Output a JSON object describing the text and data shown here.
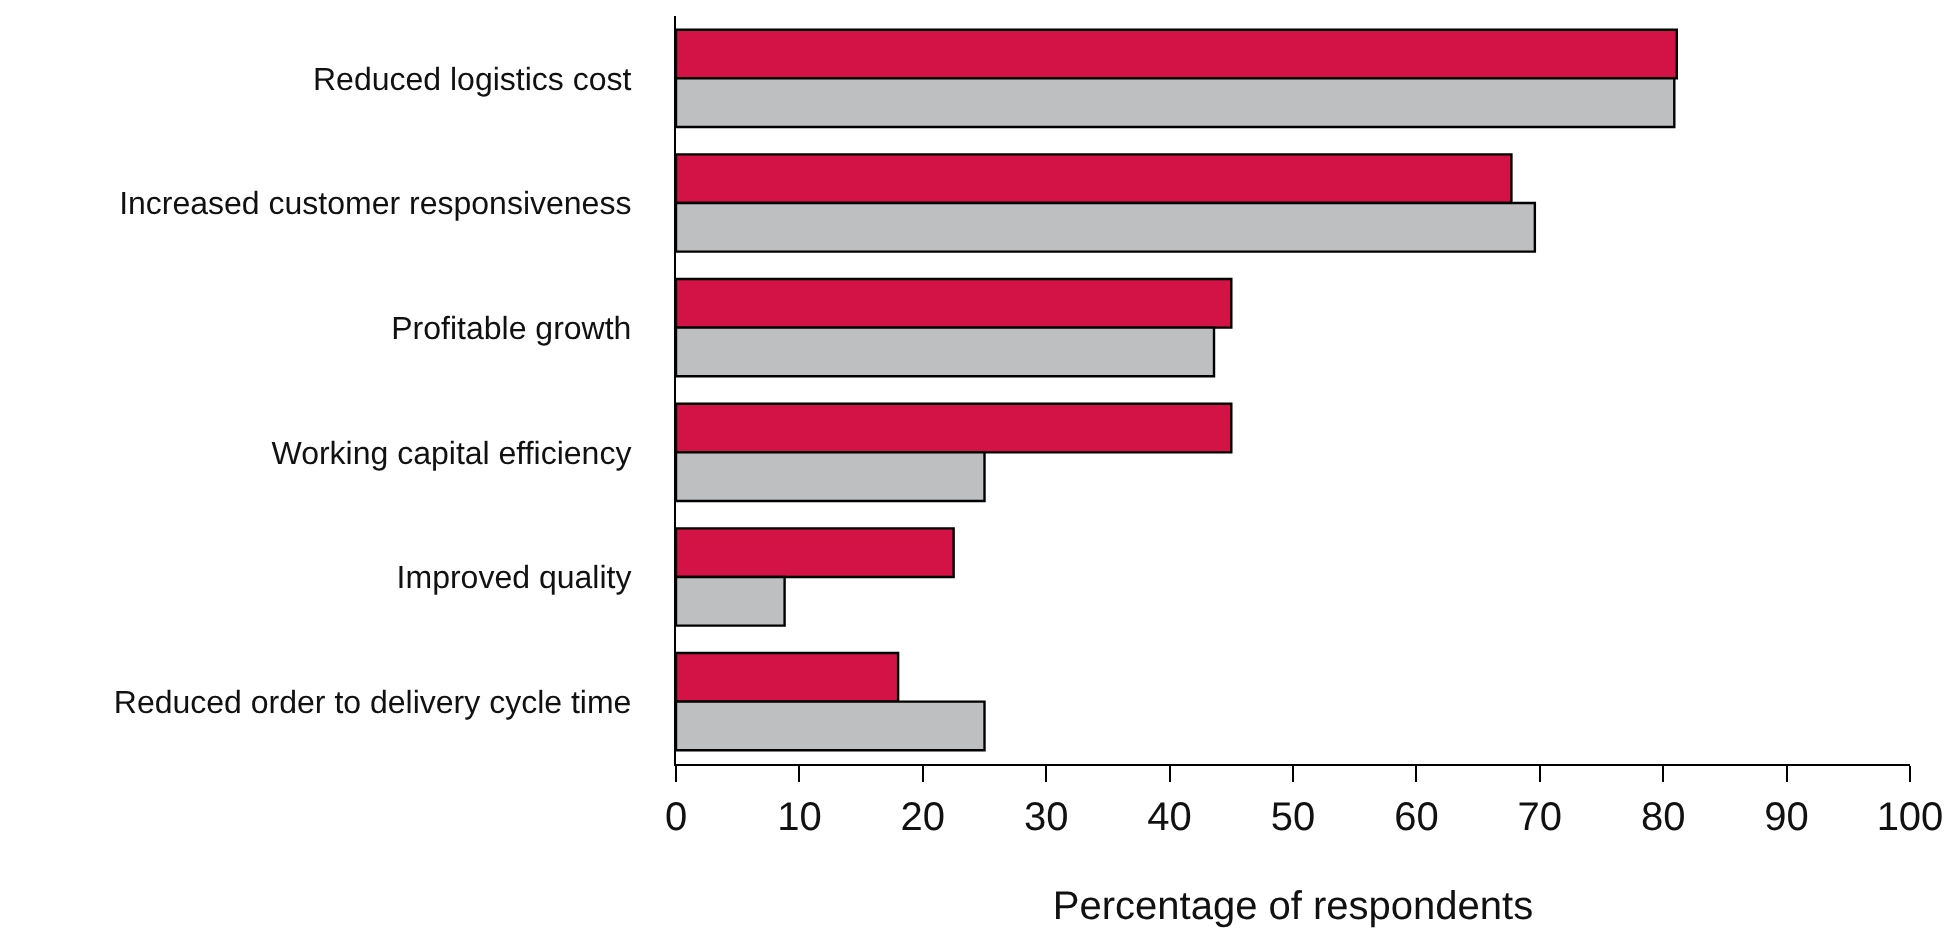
{
  "chart_data": {
    "type": "bar",
    "orientation": "horizontal",
    "xlabel": "Percentage of respondents",
    "categories": [
      "Reduced logistics cost",
      "Increased customer responsiveness",
      "Profitable growth",
      "Working capital efficiency",
      "Improved quality",
      "Reduced order to delivery cycle time"
    ],
    "series": [
      {
        "color": "#d31346",
        "values": [
          81.1,
          67.7,
          45.0,
          45.0,
          22.5,
          18.0
        ]
      },
      {
        "color": "#bebfc1",
        "values": [
          80.9,
          69.6,
          43.6,
          25.0,
          8.8,
          25.0
        ]
      }
    ],
    "xlim": [
      0,
      100
    ],
    "xticks": [
      0,
      10,
      20,
      30,
      40,
      50,
      60,
      70,
      80,
      90,
      100
    ]
  }
}
